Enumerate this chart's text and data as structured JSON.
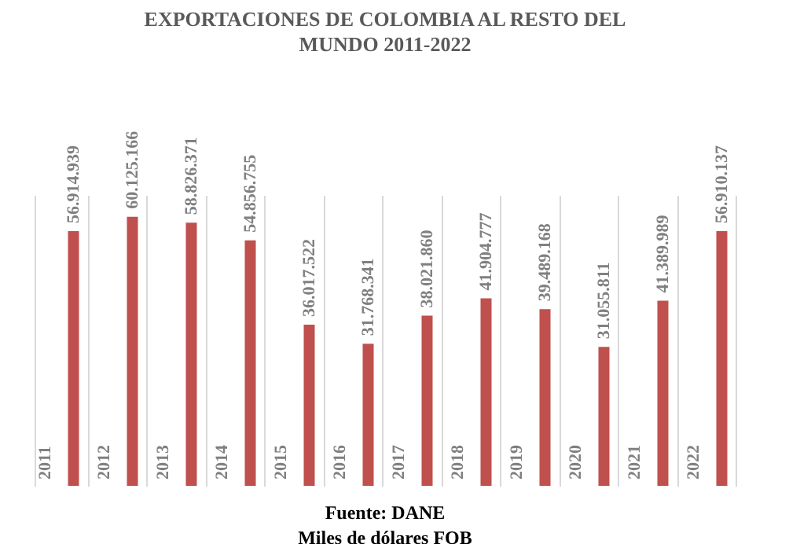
{
  "chart_data": {
    "type": "bar",
    "title": [
      "EXPORTACIONES DE COLOMBIA AL RESTO DEL",
      "MUNDO 2011-2022"
    ],
    "categories": [
      "2011",
      "2012",
      "2013",
      "2014",
      "2015",
      "2016",
      "2017",
      "2018",
      "2019",
      "2020",
      "2021",
      "2022"
    ],
    "series": [
      {
        "color": "#c0504d",
        "values": [
          56914939,
          60125166,
          58826371,
          54856755,
          36017522,
          31768341,
          38021860,
          41904777,
          39489168,
          31055811,
          41389989,
          56910137
        ],
        "value_labels": [
          "56.914.939",
          "60.125.166",
          "58.826.371",
          "54.856.755",
          "36.017.522",
          "31.768.341",
          "38.021.860",
          "41.904.777",
          "39.489.168",
          "31.055.811",
          "41.389.989",
          "56.910.137"
        ]
      }
    ],
    "grid": "x",
    "annotations": [
      "Fuente: DANE",
      "Miles de dólares FOB"
    ]
  }
}
